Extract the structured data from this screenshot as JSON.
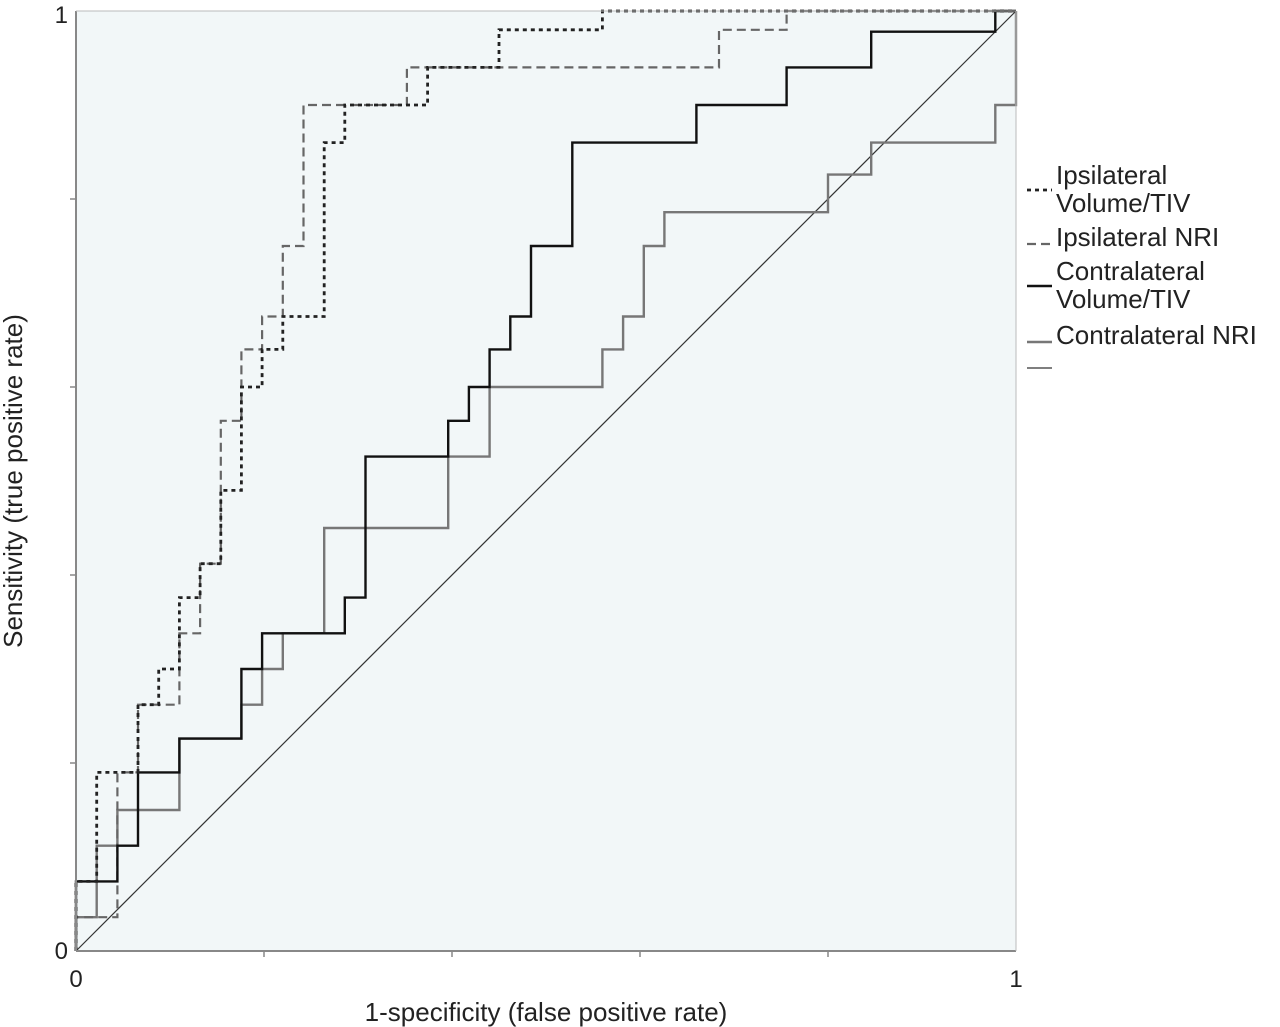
{
  "chart_data": {
    "type": "line",
    "title": "",
    "xlabel": "1-specificity (false positive rate)",
    "ylabel": "Sensitivity (true positive rate)",
    "xlim": [
      0,
      1
    ],
    "ylim": [
      0,
      1
    ],
    "x_tick_labels": [
      "0",
      "1"
    ],
    "y_tick_labels": [
      "0",
      "1"
    ],
    "grid": false,
    "legend_position": "right",
    "series": [
      {
        "name": "Ipsilateral Volume/TIV",
        "color": "#222222",
        "style": "dotted",
        "x": [
          0,
          0,
          0.022,
          0.022,
          0.066,
          0.066,
          0.088,
          0.088,
          0.11,
          0.11,
          0.132,
          0.132,
          0.154,
          0.154,
          0.176,
          0.176,
          0.198,
          0.198,
          0.22,
          0.22,
          0.264,
          0.264,
          0.286,
          0.286,
          0.374,
          0.374,
          0.45,
          0.45,
          0.56,
          0.56,
          1.0
        ],
        "y": [
          0,
          0.074,
          0.074,
          0.19,
          0.19,
          0.262,
          0.262,
          0.3,
          0.3,
          0.376,
          0.376,
          0.412,
          0.412,
          0.49,
          0.49,
          0.6,
          0.6,
          0.64,
          0.64,
          0.675,
          0.675,
          0.86,
          0.86,
          0.9,
          0.9,
          0.94,
          0.94,
          0.98,
          0.98,
          1.0,
          1.0
        ]
      },
      {
        "name": "Ipsilateral NRI",
        "color": "#666666",
        "style": "dashed",
        "x": [
          0,
          0,
          0.044,
          0.044,
          0.066,
          0.066,
          0.11,
          0.11,
          0.132,
          0.132,
          0.154,
          0.154,
          0.176,
          0.176,
          0.198,
          0.198,
          0.22,
          0.22,
          0.242,
          0.242,
          0.352,
          0.352,
          0.684,
          0.684,
          0.756,
          0.756,
          1.0
        ],
        "y": [
          0,
          0.036,
          0.036,
          0.19,
          0.19,
          0.262,
          0.262,
          0.338,
          0.338,
          0.412,
          0.412,
          0.564,
          0.564,
          0.64,
          0.64,
          0.675,
          0.675,
          0.75,
          0.75,
          0.9,
          0.9,
          0.94,
          0.94,
          0.98,
          0.98,
          1.0,
          1.0
        ]
      },
      {
        "name": "Contralateral Volume/TIV",
        "color": "#111111",
        "style": "solid",
        "x": [
          0,
          0,
          0.044,
          0.044,
          0.066,
          0.066,
          0.11,
          0.11,
          0.176,
          0.176,
          0.198,
          0.198,
          0.286,
          0.286,
          0.308,
          0.308,
          0.396,
          0.396,
          0.418,
          0.418,
          0.44,
          0.44,
          0.462,
          0.462,
          0.484,
          0.484,
          0.528,
          0.528,
          0.66,
          0.66,
          0.756,
          0.756,
          0.846,
          0.846,
          0.978,
          0.978,
          1.0
        ],
        "y": [
          0,
          0.074,
          0.074,
          0.112,
          0.112,
          0.19,
          0.19,
          0.226,
          0.226,
          0.3,
          0.3,
          0.338,
          0.338,
          0.376,
          0.376,
          0.526,
          0.526,
          0.564,
          0.564,
          0.6,
          0.6,
          0.64,
          0.64,
          0.675,
          0.675,
          0.75,
          0.75,
          0.86,
          0.86,
          0.9,
          0.9,
          0.94,
          0.94,
          0.978,
          0.978,
          1.0,
          1.0
        ]
      },
      {
        "name": "Contralateral NRI",
        "color": "#777777",
        "style": "solid",
        "x": [
          0,
          0,
          0.022,
          0.022,
          0.044,
          0.044,
          0.11,
          0.11,
          0.176,
          0.176,
          0.198,
          0.198,
          0.22,
          0.22,
          0.264,
          0.264,
          0.396,
          0.396,
          0.44,
          0.44,
          0.56,
          0.56,
          0.582,
          0.582,
          0.604,
          0.604,
          0.626,
          0.626,
          0.8,
          0.8,
          0.846,
          0.846,
          0.978,
          0.978,
          1.0,
          1.0
        ],
        "y": [
          0,
          0.036,
          0.036,
          0.112,
          0.112,
          0.15,
          0.15,
          0.226,
          0.226,
          0.262,
          0.262,
          0.3,
          0.3,
          0.338,
          0.338,
          0.45,
          0.45,
          0.526,
          0.526,
          0.6,
          0.6,
          0.64,
          0.64,
          0.675,
          0.675,
          0.75,
          0.75,
          0.786,
          0.786,
          0.826,
          0.826,
          0.86,
          0.86,
          0.9,
          0.9,
          1.0
        ]
      },
      {
        "name": "",
        "color": "#333333",
        "style": "thin-solid",
        "x": [
          0,
          1
        ],
        "y": [
          0,
          1
        ]
      }
    ],
    "legend": [
      {
        "lines": [
          "Ipsilateral",
          "Volume/TIV"
        ]
      },
      {
        "lines": [
          "Ipsilateral NRI"
        ]
      },
      {
        "lines": [
          "Contralateral",
          "Volume/TIV"
        ]
      },
      {
        "lines": [
          "Contralateral NRI"
        ]
      },
      {
        "lines": []
      }
    ]
  },
  "colors": {
    "plot_background": "#f2f7f8",
    "axis": "#888888"
  }
}
